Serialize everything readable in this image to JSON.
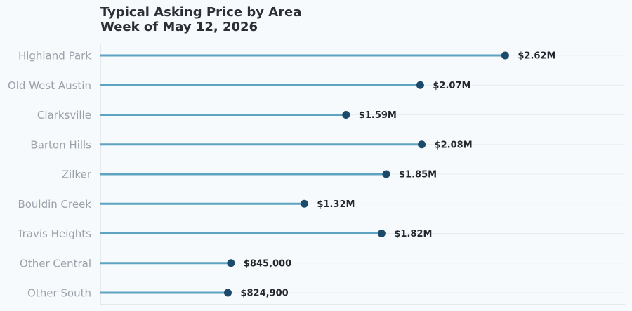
{
  "title_line1": "Typical Asking Price by Area",
  "title_line2": "Week of May 12, 2026",
  "colors": {
    "stem": "#5fa3c2",
    "dot": "#1b4a6b",
    "axis": "#d3d7dc",
    "grid": "#e9edf1",
    "label": "#9aa1a9",
    "value": "#23272e"
  },
  "chart_data": {
    "type": "lollipop",
    "orientation": "horizontal",
    "categories": [
      "Highland Park",
      "Old West Austin",
      "Clarksville",
      "Barton Hills",
      "Zilker",
      "Bouldin Creek",
      "Travis Heights",
      "Other Central",
      "Other South"
    ],
    "values": [
      2620000,
      2070000,
      1590000,
      2080000,
      1850000,
      1320000,
      1820000,
      845000,
      824900
    ],
    "value_labels": [
      "$2.62M",
      "$2.07M",
      "$1.59M",
      "$2.08M",
      "$1.85M",
      "$1.32M",
      "$1.82M",
      "$845,000",
      "$824,900"
    ],
    "xlim": [
      0,
      3300000
    ],
    "x_axis_visible": false,
    "grid": "horizontal",
    "legend": "none"
  }
}
